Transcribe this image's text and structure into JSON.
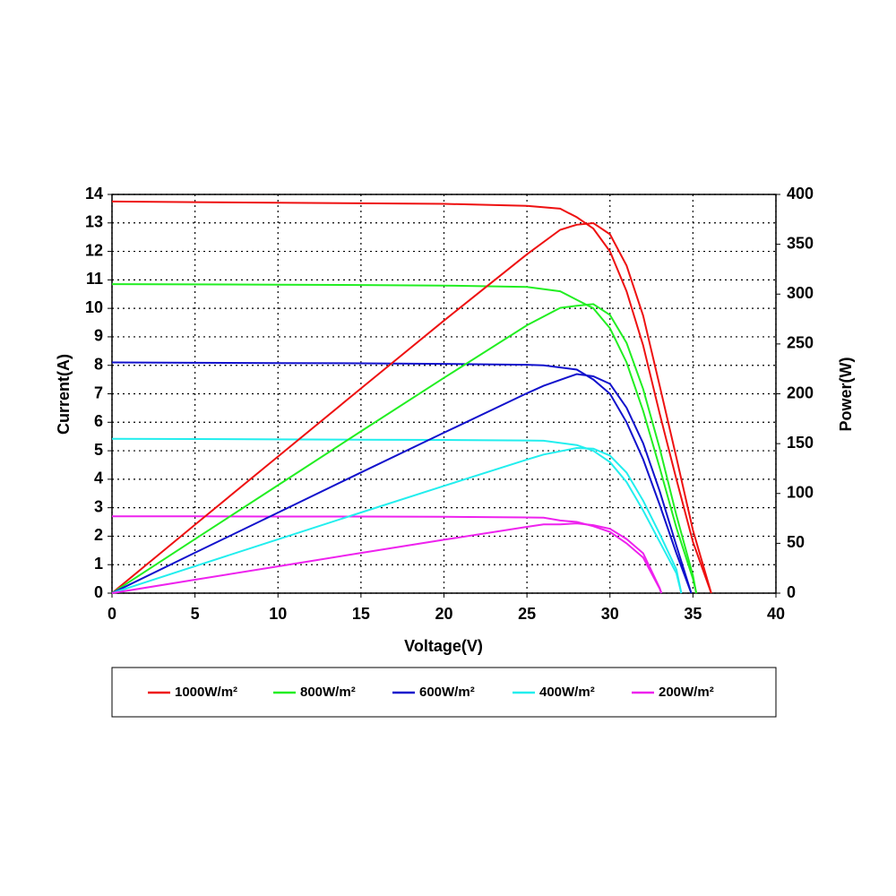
{
  "chart_data": {
    "type": "line",
    "x_label": "Voltage(V)",
    "y_label": "Current(A)",
    "y2_label": "Power(W)",
    "xlim": [
      0,
      40
    ],
    "xticks": [
      0,
      5,
      10,
      15,
      20,
      25,
      30,
      35,
      40
    ],
    "ylim": [
      0,
      14
    ],
    "yticks": [
      0,
      1,
      2,
      3,
      4,
      5,
      6,
      7,
      8,
      9,
      10,
      11,
      12,
      13,
      14
    ],
    "y2lim": [
      0,
      400
    ],
    "y2ticks": [
      0,
      50,
      100,
      150,
      200,
      250,
      300,
      350,
      400
    ],
    "grid": true,
    "legend": "bottom",
    "series": [
      {
        "name": "1000W/m²",
        "color": "#ee1111",
        "x": [
          0,
          5,
          10,
          15,
          20,
          25,
          27,
          28,
          29,
          30,
          31,
          32,
          33,
          34,
          35,
          36.1
        ],
        "values": [
          13.75,
          13.73,
          13.71,
          13.69,
          13.67,
          13.6,
          13.5,
          13.2,
          12.8,
          12,
          10.6,
          8.7,
          6.3,
          4,
          1.8,
          0
        ]
      },
      {
        "name": "800W/m²",
        "color": "#22ee22",
        "x": [
          0,
          5,
          10,
          15,
          20,
          25,
          27,
          28,
          29,
          30,
          31,
          32,
          33,
          34,
          35,
          35.2
        ],
        "values": [
          10.85,
          10.84,
          10.83,
          10.82,
          10.8,
          10.75,
          10.6,
          10.3,
          10.0,
          9.3,
          8.1,
          6.4,
          4.4,
          2.3,
          0.5,
          0
        ]
      },
      {
        "name": "600W/m²",
        "color": "#1111cc",
        "x": [
          0,
          5,
          10,
          15,
          20,
          25,
          26,
          28,
          29,
          30,
          31,
          32,
          33,
          34,
          34.9
        ],
        "values": [
          8.1,
          8.09,
          8.08,
          8.07,
          8.05,
          8.02,
          8.0,
          7.85,
          7.5,
          7.0,
          6.0,
          4.7,
          3.1,
          1.4,
          0
        ]
      },
      {
        "name": "400W/m²",
        "color": "#22eeee",
        "x": [
          0,
          5,
          10,
          15,
          20,
          25,
          26,
          28,
          29,
          30,
          31,
          32,
          33,
          34,
          34.3
        ],
        "values": [
          5.42,
          5.41,
          5.4,
          5.39,
          5.38,
          5.36,
          5.35,
          5.2,
          5.0,
          4.6,
          3.9,
          2.9,
          1.8,
          0.7,
          0
        ]
      },
      {
        "name": "200W/m²",
        "color": "#ee22ee",
        "x": [
          0,
          5,
          10,
          15,
          20,
          25,
          26,
          27,
          28,
          29,
          30,
          31,
          32,
          33,
          33.1
        ],
        "values": [
          2.7,
          2.7,
          2.69,
          2.69,
          2.68,
          2.66,
          2.65,
          2.55,
          2.5,
          2.35,
          2.15,
          1.75,
          1.25,
          0.15,
          0
        ]
      },
      {
        "axis": "y2",
        "color": "#ee1111",
        "x": [
          0,
          5,
          10,
          15,
          20,
          25,
          27,
          28,
          29,
          30,
          31,
          32,
          33,
          34,
          35,
          36.1
        ],
        "values": [
          0,
          68.7,
          137.1,
          205.4,
          273.4,
          340,
          364.5,
          369.6,
          371.2,
          360,
          328.6,
          278.4,
          207.9,
          136,
          63,
          0
        ]
      },
      {
        "axis": "y2",
        "color": "#22ee22",
        "x": [
          0,
          5,
          10,
          15,
          20,
          25,
          27,
          28,
          29,
          30,
          31,
          32,
          33,
          34,
          35,
          35.2
        ],
        "values": [
          0,
          54.2,
          108.3,
          162.3,
          216,
          268.8,
          286.2,
          288.4,
          290,
          279,
          251.1,
          204.8,
          145.2,
          78.2,
          17.5,
          0
        ]
      },
      {
        "axis": "y2",
        "color": "#1111cc",
        "x": [
          0,
          5,
          10,
          15,
          20,
          25,
          26,
          28,
          29,
          30,
          31,
          32,
          33,
          34,
          34.9
        ],
        "values": [
          0,
          40.5,
          80.8,
          121.1,
          161,
          200.5,
          208,
          219.8,
          217.5,
          210,
          186,
          150.4,
          102.3,
          47.6,
          0
        ]
      },
      {
        "axis": "y2",
        "color": "#22eeee",
        "x": [
          0,
          5,
          10,
          15,
          20,
          25,
          26,
          28,
          29,
          30,
          31,
          32,
          33,
          34,
          34.3
        ],
        "values": [
          0,
          27.1,
          54,
          80.9,
          107.6,
          134,
          139.1,
          145.6,
          145,
          138,
          120.9,
          92.8,
          59.4,
          23.8,
          0
        ]
      },
      {
        "axis": "y2",
        "color": "#ee22ee",
        "x": [
          0,
          5,
          10,
          15,
          20,
          25,
          26,
          27,
          28,
          29,
          30,
          31,
          32,
          33,
          33.1
        ],
        "values": [
          0,
          13.5,
          26.9,
          40.4,
          53.6,
          66.5,
          68.9,
          68.9,
          70,
          68.2,
          64.5,
          54.3,
          40,
          5,
          0
        ]
      }
    ]
  }
}
